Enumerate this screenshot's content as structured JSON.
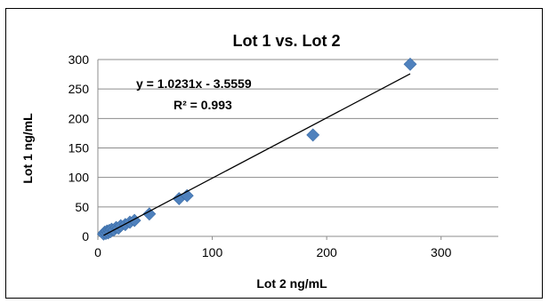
{
  "chart_data": {
    "type": "scatter",
    "title": "Lot 1 vs. Lot 2",
    "xlabel": "Lot 2  ng/mL",
    "ylabel": "Lot 1  ng/mL",
    "xlim": [
      0,
      350
    ],
    "ylim": [
      0,
      300
    ],
    "x_ticks": [
      0,
      100,
      200,
      300
    ],
    "y_ticks": [
      0,
      50,
      100,
      150,
      200,
      250,
      300
    ],
    "grid": "horizontal",
    "legend": "none",
    "marker": "diamond",
    "marker_color": "#4F81BD",
    "series": [
      {
        "points": [
          {
            "x": 5,
            "y": 4
          },
          {
            "x": 6,
            "y": 7
          },
          {
            "x": 7,
            "y": 5
          },
          {
            "x": 8,
            "y": 9
          },
          {
            "x": 9,
            "y": 6
          },
          {
            "x": 10,
            "y": 10
          },
          {
            "x": 11,
            "y": 8
          },
          {
            "x": 12,
            "y": 12
          },
          {
            "x": 14,
            "y": 11
          },
          {
            "x": 16,
            "y": 15
          },
          {
            "x": 18,
            "y": 14
          },
          {
            "x": 20,
            "y": 18
          },
          {
            "x": 24,
            "y": 20
          },
          {
            "x": 28,
            "y": 24
          },
          {
            "x": 32,
            "y": 27
          },
          {
            "x": 45,
            "y": 38
          },
          {
            "x": 71,
            "y": 64
          },
          {
            "x": 78,
            "y": 69
          },
          {
            "x": 188,
            "y": 172
          },
          {
            "x": 273,
            "y": 292
          }
        ]
      }
    ],
    "trendline": {
      "equation_label": "y = 1.0231x - 3.5559",
      "r2_label": "R² = 0.993",
      "slope": 1.0231,
      "intercept": -3.5559,
      "x_start": 5,
      "x_end": 273,
      "color": "#000000"
    }
  }
}
